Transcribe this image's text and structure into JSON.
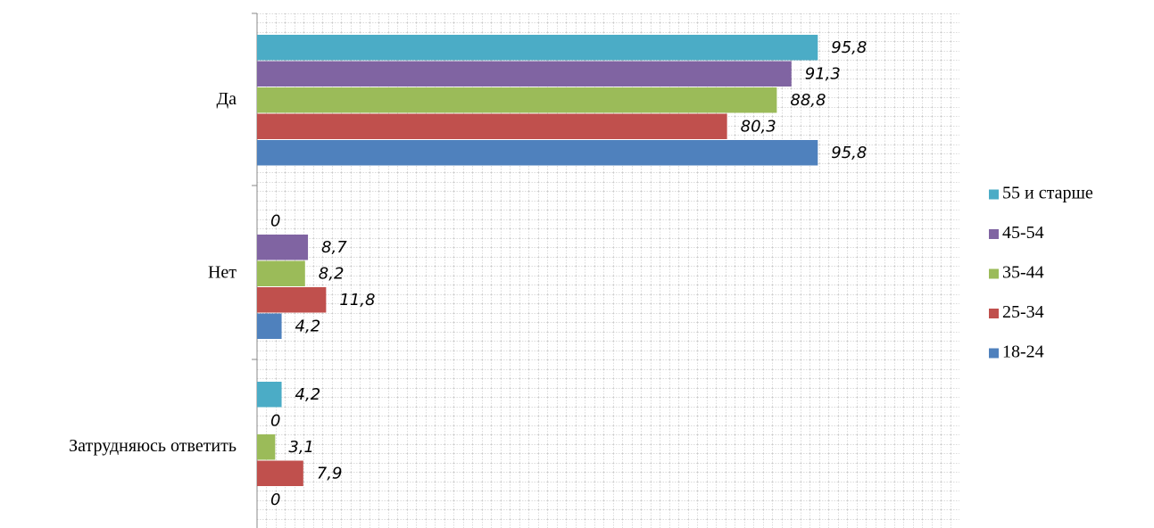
{
  "chart_data": {
    "type": "bar",
    "orientation": "horizontal",
    "categories": [
      "Да",
      "Нет",
      "Затрудняюсь ответить"
    ],
    "series": [
      {
        "name": "55 и старше",
        "color": "#4bacc6",
        "values": [
          95.8,
          0,
          4.2
        ],
        "value_labels": [
          "95,8",
          "0",
          "4,2"
        ]
      },
      {
        "name": "45-54",
        "color": "#8064a2",
        "values": [
          91.3,
          8.7,
          0
        ],
        "value_labels": [
          "91,3",
          "8,7",
          "0"
        ]
      },
      {
        "name": "35-44",
        "color": "#9bbb59",
        "values": [
          88.8,
          8.2,
          3.1
        ],
        "value_labels": [
          "88,8",
          "8,2",
          "3,1"
        ]
      },
      {
        "name": "25-34",
        "color": "#c0504d",
        "values": [
          80.3,
          11.8,
          7.9
        ],
        "value_labels": [
          "80,3",
          "11,8",
          "7,9"
        ]
      },
      {
        "name": "18-24",
        "color": "#4f81bd",
        "values": [
          95.8,
          4.2,
          0
        ],
        "value_labels": [
          "95,8",
          "4,2",
          "0"
        ]
      }
    ],
    "xlim": [
      0,
      120
    ],
    "legend": "right"
  }
}
